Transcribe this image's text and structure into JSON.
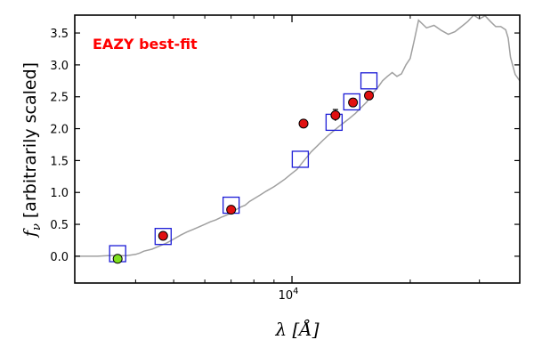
{
  "chart_data": {
    "type": "scatter",
    "title": "",
    "annotation": "EAZY best-fit",
    "annotation_color": "#ff0000",
    "xlabel": "λ [Å]",
    "ylabel": "f_ν [arbitrarily scaled]",
    "ylabel_symbol": "f",
    "ylabel_subscript": "ν",
    "ylabel_text": " [arbitrarily scaled]",
    "x_scale": "log",
    "xlim": [
      2800,
      38000
    ],
    "ylim": [
      -0.42,
      3.78
    ],
    "yticks": [
      0.0,
      0.5,
      1.0,
      1.5,
      2.0,
      2.5,
      3.0,
      3.5
    ],
    "ytick_labels": [
      "0.0",
      "0.5",
      "1.0",
      "1.5",
      "2.0",
      "2.5",
      "3.0",
      "3.5"
    ],
    "xticks_major": [
      10000
    ],
    "xtick_major_label_base": "10",
    "xtick_major_label_exp": "4",
    "xticks_minor": [
      4000,
      5000,
      6000,
      7000,
      8000,
      9000,
      20000,
      30000
    ],
    "grid": false,
    "colors": {
      "model": "#a0a0a0",
      "model_phot": "#1a1ad6",
      "observed": "#e01010",
      "upper_point": "#7fe020",
      "marker_edge": "#000000"
    },
    "series": [
      {
        "kind": "line",
        "x": [
          2800,
          3000,
          3200,
          3400,
          3600,
          3800,
          3900,
          4000,
          4100,
          4200,
          4400,
          4600,
          4800,
          5000,
          5200,
          5400,
          5600,
          5800,
          6000,
          6200,
          6400,
          6600,
          6800,
          7000,
          7200,
          7400,
          7600,
          7800,
          8000,
          8300,
          8600,
          9000,
          9300,
          9600,
          10000,
          10300,
          10600,
          10900,
          11200,
          11600,
          12000,
          12400,
          12800,
          13200,
          13600,
          14000,
          14500,
          15000,
          15500,
          16000,
          16300,
          16600,
          17000,
          17500,
          18000,
          18500,
          19000,
          19500,
          20000,
          20500,
          21000,
          22000,
          23000,
          24000,
          25000,
          25500,
          26000,
          27000,
          28000,
          29000,
          30000,
          31000,
          32000,
          33000,
          34000,
          35000,
          35500,
          36000,
          36500,
          37000,
          38000
        ],
        "y": [
          0.0,
          0.0,
          0.0,
          0.01,
          0.01,
          0.01,
          0.02,
          0.03,
          0.05,
          0.08,
          0.11,
          0.16,
          0.21,
          0.27,
          0.33,
          0.38,
          0.42,
          0.46,
          0.5,
          0.54,
          0.57,
          0.61,
          0.64,
          0.68,
          0.73,
          0.77,
          0.8,
          0.86,
          0.9,
          0.96,
          1.02,
          1.09,
          1.15,
          1.21,
          1.3,
          1.36,
          1.46,
          1.55,
          1.64,
          1.73,
          1.82,
          1.9,
          1.97,
          2.04,
          2.1,
          2.16,
          2.24,
          2.33,
          2.42,
          2.55,
          2.6,
          2.66,
          2.75,
          2.82,
          2.88,
          2.82,
          2.86,
          3.0,
          3.1,
          3.4,
          3.7,
          3.58,
          3.62,
          3.54,
          3.48,
          3.5,
          3.52,
          3.6,
          3.68,
          3.78,
          3.72,
          3.77,
          3.68,
          3.6,
          3.6,
          3.55,
          3.42,
          3.12,
          2.98,
          2.85,
          2.75
        ]
      },
      {
        "kind": "model_photometry",
        "x": [
          3600,
          4700,
          7000,
          10500,
          12800,
          14200,
          15700
        ],
        "y": [
          0.04,
          0.31,
          0.8,
          1.52,
          2.1,
          2.42,
          2.75
        ]
      },
      {
        "kind": "observed",
        "x": [
          4700,
          7000,
          10700,
          12900,
          14300,
          15700
        ],
        "y": [
          0.32,
          0.73,
          2.08,
          2.21,
          2.41,
          2.52
        ],
        "err": [
          0.0,
          0.0,
          0.0,
          0.09,
          0.06,
          0.0
        ]
      },
      {
        "kind": "observed_low",
        "x": [
          3600
        ],
        "y": [
          -0.04
        ]
      }
    ]
  }
}
